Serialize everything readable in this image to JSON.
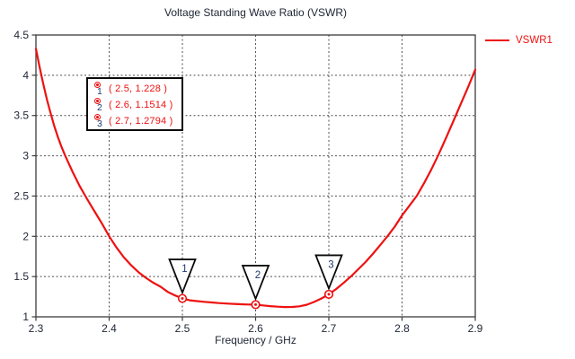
{
  "title": "Voltage Standing Wave Ratio (VSWR)",
  "axes": {
    "xlabel": "Frequency / GHz",
    "x_tick_labels": [
      "2.3",
      "2.4",
      "2.5",
      "2.6",
      "2.7",
      "2.8",
      "2.9"
    ],
    "y_tick_labels": [
      "1",
      "1.5",
      "2",
      "2.5",
      "3",
      "3.5",
      "4",
      "4.5"
    ]
  },
  "legend": {
    "label": "VSWR1"
  },
  "marker_box": {
    "rows": [
      {
        "num": "1",
        "text": "( 2.5, 1.228 )"
      },
      {
        "num": "2",
        "text": "( 2.6, 1.1514 )"
      },
      {
        "num": "3",
        "text": "( 2.7, 1.2794 )"
      }
    ]
  },
  "colors": {
    "series": "#ee1111",
    "text": "#1c2433",
    "marker_number": "#1f3a70",
    "grid": "#4f4f4f",
    "axis": "#3c3c3c",
    "flag_fill": "#ffffff",
    "flag_border": "#0a0a0a"
  },
  "chart_data": {
    "type": "line",
    "title": "Voltage Standing Wave Ratio (VSWR)",
    "xlabel": "Frequency / GHz",
    "ylabel": "",
    "xlim": [
      2.3,
      2.9
    ],
    "ylim": [
      1,
      4.5
    ],
    "xticks": [
      2.3,
      2.4,
      2.5,
      2.6,
      2.7,
      2.8,
      2.9
    ],
    "yticks": [
      1,
      1.5,
      2,
      2.5,
      3,
      3.5,
      4,
      4.5
    ],
    "grid": true,
    "legend_position": "outside-top-right",
    "series": [
      {
        "name": "VSWR1",
        "color": "#ee1111",
        "x": [
          2.3,
          2.305,
          2.31,
          2.315,
          2.32,
          2.325,
          2.33,
          2.335,
          2.34,
          2.35,
          2.36,
          2.37,
          2.38,
          2.39,
          2.4,
          2.41,
          2.42,
          2.43,
          2.44,
          2.45,
          2.46,
          2.47,
          2.48,
          2.49,
          2.5,
          2.51,
          2.52,
          2.53,
          2.54,
          2.55,
          2.56,
          2.57,
          2.58,
          2.59,
          2.6,
          2.61,
          2.62,
          2.63,
          2.64,
          2.65,
          2.66,
          2.67,
          2.68,
          2.69,
          2.7,
          2.71,
          2.72,
          2.73,
          2.74,
          2.75,
          2.76,
          2.77,
          2.78,
          2.79,
          2.8,
          2.81,
          2.82,
          2.83,
          2.84,
          2.85,
          2.86,
          2.87,
          2.88,
          2.89,
          2.9
        ],
        "y": [
          4.33,
          4.1,
          3.89,
          3.7,
          3.53,
          3.37,
          3.23,
          3.11,
          3.0,
          2.8,
          2.62,
          2.46,
          2.31,
          2.16,
          2.0,
          1.86,
          1.74,
          1.64,
          1.555,
          1.485,
          1.425,
          1.375,
          1.31,
          1.265,
          1.228,
          1.205,
          1.195,
          1.186,
          1.178,
          1.171,
          1.165,
          1.16,
          1.156,
          1.153,
          1.1514,
          1.142,
          1.133,
          1.126,
          1.122,
          1.123,
          1.13,
          1.15,
          1.185,
          1.228,
          1.2794,
          1.345,
          1.42,
          1.5,
          1.59,
          1.68,
          1.78,
          1.89,
          2.0,
          2.12,
          2.26,
          2.38,
          2.5,
          2.66,
          2.83,
          3.02,
          3.22,
          3.43,
          3.64,
          3.85,
          4.07
        ]
      }
    ],
    "point_markers": [
      {
        "label": "1",
        "x": 2.5,
        "y": 1.228
      },
      {
        "label": "2",
        "x": 2.6,
        "y": 1.1514
      },
      {
        "label": "3",
        "x": 2.7,
        "y": 1.2794
      }
    ]
  }
}
